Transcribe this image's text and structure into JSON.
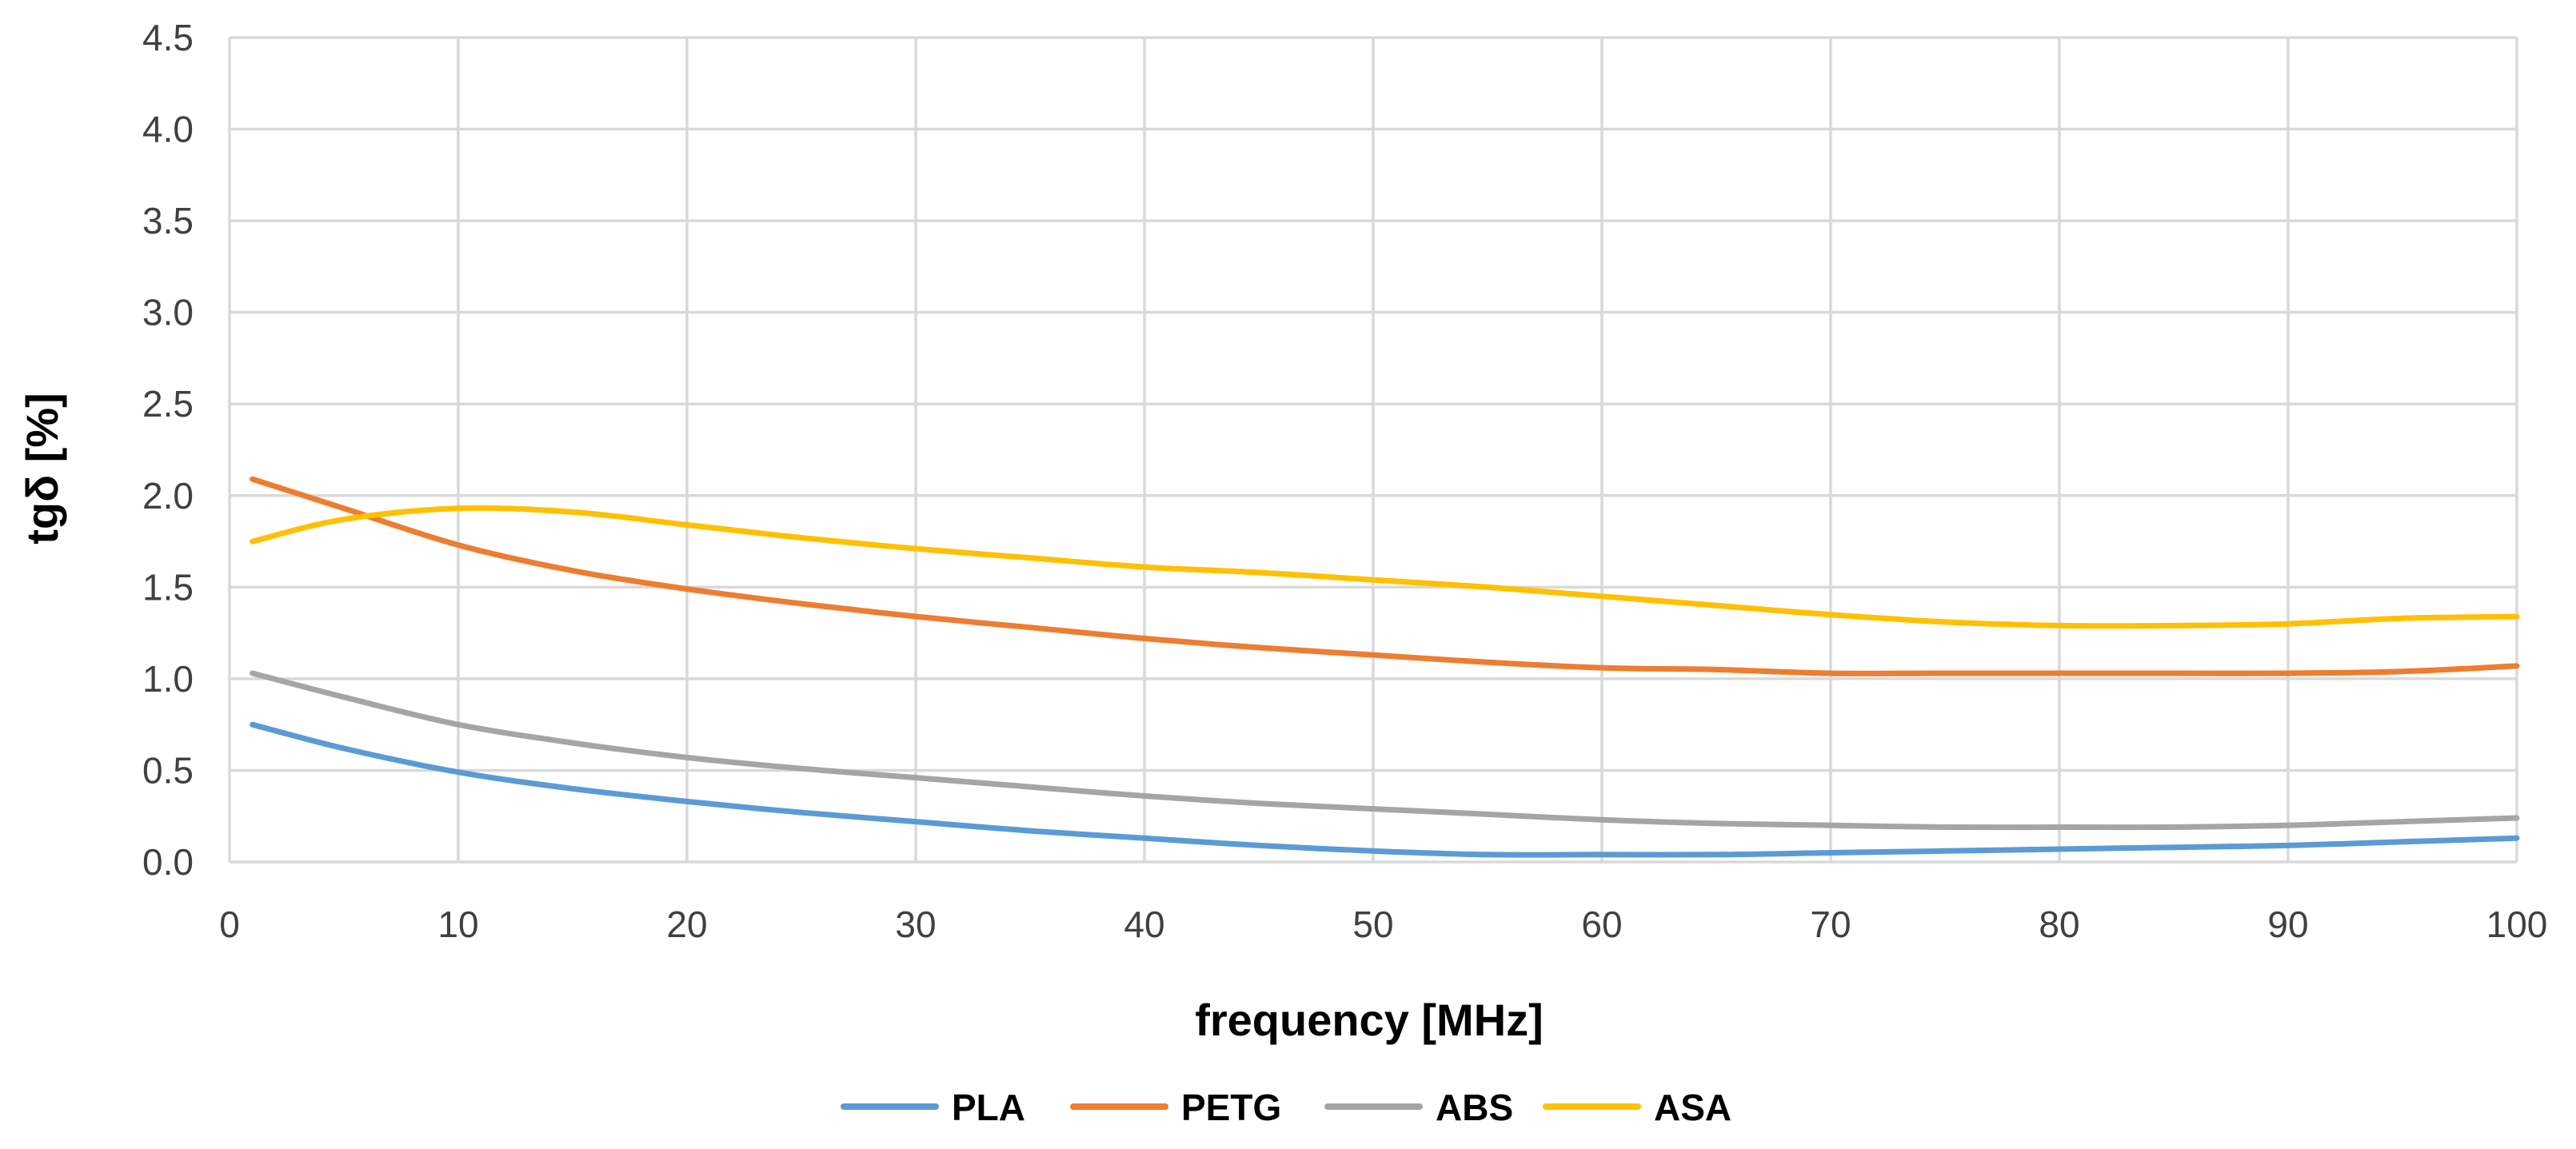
{
  "chart_data": {
    "type": "line",
    "title": "",
    "xlabel": "frequency [MHz]",
    "ylabel": "tgδ [%]",
    "xlim": [
      0,
      100
    ],
    "ylim": [
      0,
      4.5
    ],
    "x_ticks": [
      0,
      10,
      20,
      30,
      40,
      50,
      60,
      70,
      80,
      90,
      100
    ],
    "y_ticks": [
      0,
      0.5,
      1.0,
      1.5,
      2.0,
      2.5,
      3.0,
      3.5,
      4.0,
      4.5
    ],
    "x_tick_labels": [
      "0",
      "10",
      "20",
      "30",
      "40",
      "50",
      "60",
      "70",
      "80",
      "90",
      "100"
    ],
    "y_tick_labels": [
      "0.0",
      "0.5",
      "1.0",
      "1.5",
      "2.0",
      "2.5",
      "3.0",
      "3.5",
      "4.0",
      "4.5"
    ],
    "grid": true,
    "legend_position": "bottom",
    "x": [
      1,
      5,
      10,
      15,
      20,
      25,
      30,
      35,
      40,
      45,
      50,
      55,
      60,
      65,
      70,
      75,
      80,
      85,
      90,
      95,
      100
    ],
    "series": [
      {
        "name": "PLA",
        "color": "#5b9bd5",
        "values": [
          0.75,
          0.62,
          0.49,
          0.4,
          0.33,
          0.27,
          0.22,
          0.17,
          0.13,
          0.09,
          0.06,
          0.04,
          0.04,
          0.04,
          0.05,
          0.06,
          0.07,
          0.08,
          0.09,
          0.11,
          0.13
        ]
      },
      {
        "name": "PETG",
        "color": "#ed7d31",
        "values": [
          2.09,
          1.93,
          1.73,
          1.59,
          1.49,
          1.41,
          1.34,
          1.28,
          1.22,
          1.17,
          1.13,
          1.09,
          1.06,
          1.05,
          1.03,
          1.03,
          1.03,
          1.03,
          1.03,
          1.04,
          1.07
        ]
      },
      {
        "name": "ABS",
        "color": "#a5a5a5",
        "values": [
          1.03,
          0.9,
          0.75,
          0.65,
          0.57,
          0.51,
          0.46,
          0.41,
          0.36,
          0.32,
          0.29,
          0.26,
          0.23,
          0.21,
          0.2,
          0.19,
          0.19,
          0.19,
          0.2,
          0.22,
          0.24
        ]
      },
      {
        "name": "ASA",
        "color": "#ffc000",
        "values": [
          1.75,
          1.87,
          1.93,
          1.91,
          1.84,
          1.77,
          1.71,
          1.66,
          1.61,
          1.58,
          1.54,
          1.5,
          1.45,
          1.4,
          1.35,
          1.31,
          1.29,
          1.29,
          1.3,
          1.33,
          1.34
        ]
      }
    ]
  }
}
